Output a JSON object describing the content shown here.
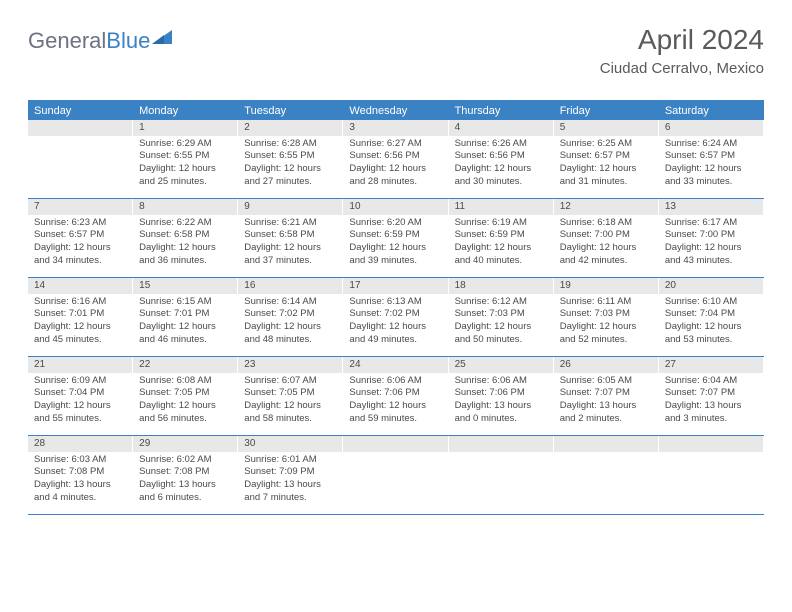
{
  "logo": {
    "text_general": "General",
    "text_blue": "Blue"
  },
  "header": {
    "month_title": "April 2024",
    "location": "Ciudad Cerralvo, Mexico"
  },
  "colors": {
    "accent": "#3b82c4",
    "header_bg": "#3b82c4",
    "header_text": "#ffffff",
    "daynum_bg": "#e8e8e8",
    "text": "#4a4a4a",
    "logo_gray": "#6b7280"
  },
  "day_labels": [
    "Sunday",
    "Monday",
    "Tuesday",
    "Wednesday",
    "Thursday",
    "Friday",
    "Saturday"
  ],
  "weeks": [
    [
      {
        "num": "",
        "sunrise": "",
        "sunset": "",
        "daylight1": "",
        "daylight2": ""
      },
      {
        "num": "1",
        "sunrise": "Sunrise: 6:29 AM",
        "sunset": "Sunset: 6:55 PM",
        "daylight1": "Daylight: 12 hours",
        "daylight2": "and 25 minutes."
      },
      {
        "num": "2",
        "sunrise": "Sunrise: 6:28 AM",
        "sunset": "Sunset: 6:55 PM",
        "daylight1": "Daylight: 12 hours",
        "daylight2": "and 27 minutes."
      },
      {
        "num": "3",
        "sunrise": "Sunrise: 6:27 AM",
        "sunset": "Sunset: 6:56 PM",
        "daylight1": "Daylight: 12 hours",
        "daylight2": "and 28 minutes."
      },
      {
        "num": "4",
        "sunrise": "Sunrise: 6:26 AM",
        "sunset": "Sunset: 6:56 PM",
        "daylight1": "Daylight: 12 hours",
        "daylight2": "and 30 minutes."
      },
      {
        "num": "5",
        "sunrise": "Sunrise: 6:25 AM",
        "sunset": "Sunset: 6:57 PM",
        "daylight1": "Daylight: 12 hours",
        "daylight2": "and 31 minutes."
      },
      {
        "num": "6",
        "sunrise": "Sunrise: 6:24 AM",
        "sunset": "Sunset: 6:57 PM",
        "daylight1": "Daylight: 12 hours",
        "daylight2": "and 33 minutes."
      }
    ],
    [
      {
        "num": "7",
        "sunrise": "Sunrise: 6:23 AM",
        "sunset": "Sunset: 6:57 PM",
        "daylight1": "Daylight: 12 hours",
        "daylight2": "and 34 minutes."
      },
      {
        "num": "8",
        "sunrise": "Sunrise: 6:22 AM",
        "sunset": "Sunset: 6:58 PM",
        "daylight1": "Daylight: 12 hours",
        "daylight2": "and 36 minutes."
      },
      {
        "num": "9",
        "sunrise": "Sunrise: 6:21 AM",
        "sunset": "Sunset: 6:58 PM",
        "daylight1": "Daylight: 12 hours",
        "daylight2": "and 37 minutes."
      },
      {
        "num": "10",
        "sunrise": "Sunrise: 6:20 AM",
        "sunset": "Sunset: 6:59 PM",
        "daylight1": "Daylight: 12 hours",
        "daylight2": "and 39 minutes."
      },
      {
        "num": "11",
        "sunrise": "Sunrise: 6:19 AM",
        "sunset": "Sunset: 6:59 PM",
        "daylight1": "Daylight: 12 hours",
        "daylight2": "and 40 minutes."
      },
      {
        "num": "12",
        "sunrise": "Sunrise: 6:18 AM",
        "sunset": "Sunset: 7:00 PM",
        "daylight1": "Daylight: 12 hours",
        "daylight2": "and 42 minutes."
      },
      {
        "num": "13",
        "sunrise": "Sunrise: 6:17 AM",
        "sunset": "Sunset: 7:00 PM",
        "daylight1": "Daylight: 12 hours",
        "daylight2": "and 43 minutes."
      }
    ],
    [
      {
        "num": "14",
        "sunrise": "Sunrise: 6:16 AM",
        "sunset": "Sunset: 7:01 PM",
        "daylight1": "Daylight: 12 hours",
        "daylight2": "and 45 minutes."
      },
      {
        "num": "15",
        "sunrise": "Sunrise: 6:15 AM",
        "sunset": "Sunset: 7:01 PM",
        "daylight1": "Daylight: 12 hours",
        "daylight2": "and 46 minutes."
      },
      {
        "num": "16",
        "sunrise": "Sunrise: 6:14 AM",
        "sunset": "Sunset: 7:02 PM",
        "daylight1": "Daylight: 12 hours",
        "daylight2": "and 48 minutes."
      },
      {
        "num": "17",
        "sunrise": "Sunrise: 6:13 AM",
        "sunset": "Sunset: 7:02 PM",
        "daylight1": "Daylight: 12 hours",
        "daylight2": "and 49 minutes."
      },
      {
        "num": "18",
        "sunrise": "Sunrise: 6:12 AM",
        "sunset": "Sunset: 7:03 PM",
        "daylight1": "Daylight: 12 hours",
        "daylight2": "and 50 minutes."
      },
      {
        "num": "19",
        "sunrise": "Sunrise: 6:11 AM",
        "sunset": "Sunset: 7:03 PM",
        "daylight1": "Daylight: 12 hours",
        "daylight2": "and 52 minutes."
      },
      {
        "num": "20",
        "sunrise": "Sunrise: 6:10 AM",
        "sunset": "Sunset: 7:04 PM",
        "daylight1": "Daylight: 12 hours",
        "daylight2": "and 53 minutes."
      }
    ],
    [
      {
        "num": "21",
        "sunrise": "Sunrise: 6:09 AM",
        "sunset": "Sunset: 7:04 PM",
        "daylight1": "Daylight: 12 hours",
        "daylight2": "and 55 minutes."
      },
      {
        "num": "22",
        "sunrise": "Sunrise: 6:08 AM",
        "sunset": "Sunset: 7:05 PM",
        "daylight1": "Daylight: 12 hours",
        "daylight2": "and 56 minutes."
      },
      {
        "num": "23",
        "sunrise": "Sunrise: 6:07 AM",
        "sunset": "Sunset: 7:05 PM",
        "daylight1": "Daylight: 12 hours",
        "daylight2": "and 58 minutes."
      },
      {
        "num": "24",
        "sunrise": "Sunrise: 6:06 AM",
        "sunset": "Sunset: 7:06 PM",
        "daylight1": "Daylight: 12 hours",
        "daylight2": "and 59 minutes."
      },
      {
        "num": "25",
        "sunrise": "Sunrise: 6:06 AM",
        "sunset": "Sunset: 7:06 PM",
        "daylight1": "Daylight: 13 hours",
        "daylight2": "and 0 minutes."
      },
      {
        "num": "26",
        "sunrise": "Sunrise: 6:05 AM",
        "sunset": "Sunset: 7:07 PM",
        "daylight1": "Daylight: 13 hours",
        "daylight2": "and 2 minutes."
      },
      {
        "num": "27",
        "sunrise": "Sunrise: 6:04 AM",
        "sunset": "Sunset: 7:07 PM",
        "daylight1": "Daylight: 13 hours",
        "daylight2": "and 3 minutes."
      }
    ],
    [
      {
        "num": "28",
        "sunrise": "Sunrise: 6:03 AM",
        "sunset": "Sunset: 7:08 PM",
        "daylight1": "Daylight: 13 hours",
        "daylight2": "and 4 minutes."
      },
      {
        "num": "29",
        "sunrise": "Sunrise: 6:02 AM",
        "sunset": "Sunset: 7:08 PM",
        "daylight1": "Daylight: 13 hours",
        "daylight2": "and 6 minutes."
      },
      {
        "num": "30",
        "sunrise": "Sunrise: 6:01 AM",
        "sunset": "Sunset: 7:09 PM",
        "daylight1": "Daylight: 13 hours",
        "daylight2": "and 7 minutes."
      },
      {
        "num": "",
        "sunrise": "",
        "sunset": "",
        "daylight1": "",
        "daylight2": ""
      },
      {
        "num": "",
        "sunrise": "",
        "sunset": "",
        "daylight1": "",
        "daylight2": ""
      },
      {
        "num": "",
        "sunrise": "",
        "sunset": "",
        "daylight1": "",
        "daylight2": ""
      },
      {
        "num": "",
        "sunrise": "",
        "sunset": "",
        "daylight1": "",
        "daylight2": ""
      }
    ]
  ]
}
